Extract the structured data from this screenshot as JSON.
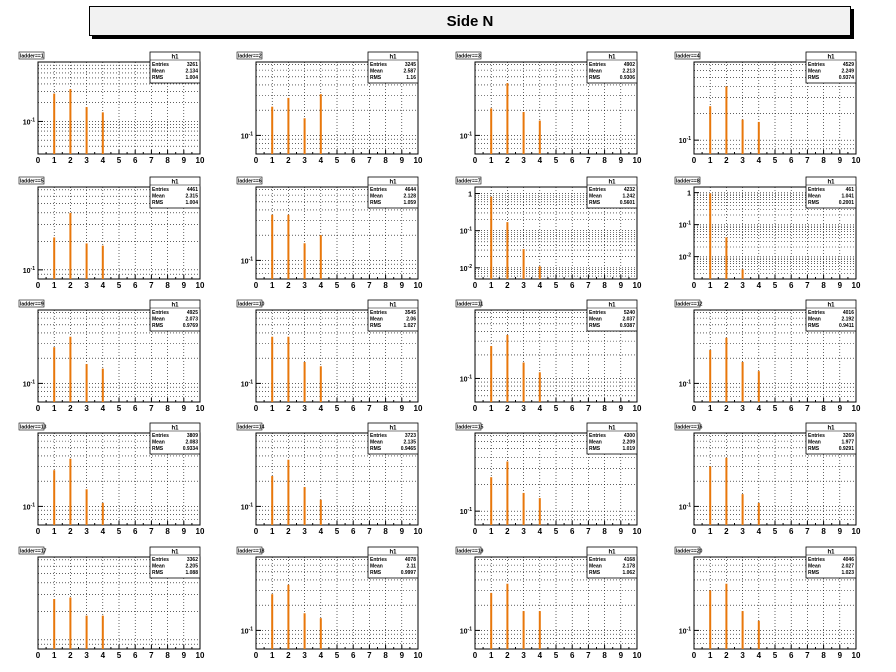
{
  "page_title": "Side N",
  "chart_data": [
    {
      "type": "bar",
      "title": "ladder==1",
      "stats": {
        "name": "h1",
        "entries": "3261",
        "mean": "2.134",
        "rms": "1.004"
      },
      "x_ticks": [
        "0",
        "1",
        "2",
        "3",
        "4",
        "5",
        "6",
        "7",
        "8",
        "9",
        "10"
      ],
      "xlim": [
        0,
        10
      ],
      "y_log": true,
      "y_ticks": [
        "10^-1"
      ],
      "ylim": [
        0.03,
        0.9
      ],
      "bars": [
        {
          "x": 1,
          "y": 0.28
        },
        {
          "x": 2,
          "y": 0.33
        },
        {
          "x": 3,
          "y": 0.17
        },
        {
          "x": 4,
          "y": 0.14
        }
      ]
    },
    {
      "type": "bar",
      "title": "ladder==2",
      "stats": {
        "name": "h1",
        "entries": "3245",
        "mean": "2.587",
        "rms": "1.16"
      },
      "x_ticks": [
        "0",
        "1",
        "2",
        "3",
        "4",
        "5",
        "6",
        "7",
        "8",
        "9",
        "10"
      ],
      "xlim": [
        0,
        10
      ],
      "y_log": true,
      "y_ticks": [
        "10^-1"
      ],
      "ylim": [
        0.06,
        0.75
      ],
      "bars": [
        {
          "x": 1,
          "y": 0.22
        },
        {
          "x": 2,
          "y": 0.28
        },
        {
          "x": 3,
          "y": 0.16
        },
        {
          "x": 4,
          "y": 0.31
        }
      ]
    },
    {
      "type": "bar",
      "title": "ladder==3",
      "stats": {
        "name": "h1",
        "entries": "4902",
        "mean": "2.213",
        "rms": "0.9306"
      },
      "x_ticks": [
        "0",
        "1",
        "2",
        "3",
        "4",
        "5",
        "6",
        "7",
        "8",
        "9",
        "10"
      ],
      "xlim": [
        0,
        10
      ],
      "y_log": true,
      "y_ticks": [
        "10^-1"
      ],
      "ylim": [
        0.06,
        0.75
      ],
      "bars": [
        {
          "x": 1,
          "y": 0.21
        },
        {
          "x": 2,
          "y": 0.42
        },
        {
          "x": 3,
          "y": 0.19
        },
        {
          "x": 4,
          "y": 0.15
        }
      ]
    },
    {
      "type": "bar",
      "title": "ladder==4",
      "stats": {
        "name": "h1",
        "entries": "4529",
        "mean": "2.249",
        "rms": "0.9374"
      },
      "x_ticks": [
        "0",
        "1",
        "2",
        "3",
        "4",
        "5",
        "6",
        "7",
        "8",
        "9",
        "10"
      ],
      "xlim": [
        0,
        10
      ],
      "y_log": true,
      "y_ticks": [
        "10^-1"
      ],
      "ylim": [
        0.07,
        0.75
      ],
      "bars": [
        {
          "x": 1,
          "y": 0.24
        },
        {
          "x": 2,
          "y": 0.4
        },
        {
          "x": 3,
          "y": 0.17
        },
        {
          "x": 4,
          "y": 0.16
        }
      ]
    },
    {
      "type": "bar",
      "title": "ladder==5",
      "stats": {
        "name": "h1",
        "entries": "4461",
        "mean": "2.315",
        "rms": "1.004"
      },
      "x_ticks": [
        "0",
        "1",
        "2",
        "3",
        "4",
        "5",
        "6",
        "7",
        "8",
        "9",
        "10"
      ],
      "xlim": [
        0,
        10
      ],
      "y_log": true,
      "y_ticks": [
        "10^-1"
      ],
      "ylim": [
        0.08,
        0.75
      ],
      "bars": [
        {
          "x": 1,
          "y": 0.22
        },
        {
          "x": 2,
          "y": 0.4
        },
        {
          "x": 3,
          "y": 0.19
        },
        {
          "x": 4,
          "y": 0.18
        }
      ]
    },
    {
      "type": "bar",
      "title": "ladder==6",
      "stats": {
        "name": "h1",
        "entries": "4644",
        "mean": "2.128",
        "rms": "1.059"
      },
      "x_ticks": [
        "0",
        "1",
        "2",
        "3",
        "4",
        "5",
        "6",
        "7",
        "8",
        "9",
        "10"
      ],
      "xlim": [
        0,
        10
      ],
      "y_log": true,
      "y_ticks": [
        "10^-1"
      ],
      "ylim": [
        0.06,
        0.75
      ],
      "bars": [
        {
          "x": 1,
          "y": 0.35
        },
        {
          "x": 2,
          "y": 0.35
        },
        {
          "x": 3,
          "y": 0.16
        },
        {
          "x": 4,
          "y": 0.2
        }
      ]
    },
    {
      "type": "bar",
      "title": "ladder==7",
      "stats": {
        "name": "h1",
        "entries": "4232",
        "mean": "1.242",
        "rms": "0.5601"
      },
      "x_ticks": [
        "0",
        "1",
        "2",
        "3",
        "4",
        "5",
        "6",
        "7",
        "8",
        "9",
        "10"
      ],
      "xlim": [
        0,
        10
      ],
      "y_log": true,
      "y_ticks": [
        "1",
        "10^-1",
        "10^-2"
      ],
      "ylim": [
        0.005,
        1.5
      ],
      "bars": [
        {
          "x": 1,
          "y": 0.82
        },
        {
          "x": 2,
          "y": 0.17
        },
        {
          "x": 3,
          "y": 0.032
        },
        {
          "x": 4,
          "y": 0.011
        }
      ]
    },
    {
      "type": "bar",
      "title": "ladder==8",
      "stats": {
        "name": "h1",
        "entries": "461",
        "mean": "1.041",
        "rms": "0.2001"
      },
      "x_ticks": [
        "0",
        "1",
        "2",
        "3",
        "4",
        "5",
        "6",
        "7",
        "8",
        "9",
        "10"
      ],
      "xlim": [
        0,
        10
      ],
      "y_log": true,
      "y_ticks": [
        "1",
        "10^-1",
        "10^-2"
      ],
      "ylim": [
        0.002,
        1.5
      ],
      "bars": [
        {
          "x": 1,
          "y": 0.95
        },
        {
          "x": 2,
          "y": 0.04
        },
        {
          "x": 3,
          "y": 0.004
        }
      ]
    },
    {
      "type": "bar",
      "title": "ladder==9",
      "stats": {
        "name": "h1",
        "entries": "4925",
        "mean": "2.073",
        "rms": "0.9769"
      },
      "x_ticks": [
        "0",
        "1",
        "2",
        "3",
        "4",
        "5",
        "6",
        "7",
        "8",
        "9",
        "10"
      ],
      "xlim": [
        0,
        10
      ],
      "y_log": true,
      "y_ticks": [
        "10^-1"
      ],
      "ylim": [
        0.06,
        0.75
      ],
      "bars": [
        {
          "x": 1,
          "y": 0.27
        },
        {
          "x": 2,
          "y": 0.36
        },
        {
          "x": 3,
          "y": 0.17
        },
        {
          "x": 4,
          "y": 0.15
        }
      ]
    },
    {
      "type": "bar",
      "title": "ladder==10",
      "stats": {
        "name": "h1",
        "entries": "3545",
        "mean": "2.06",
        "rms": "1.027"
      },
      "x_ticks": [
        "0",
        "1",
        "2",
        "3",
        "4",
        "5",
        "6",
        "7",
        "8",
        "9",
        "10"
      ],
      "xlim": [
        0,
        10
      ],
      "y_log": true,
      "y_ticks": [
        "10^-1"
      ],
      "ylim": [
        0.06,
        0.75
      ],
      "bars": [
        {
          "x": 1,
          "y": 0.36
        },
        {
          "x": 2,
          "y": 0.36
        },
        {
          "x": 3,
          "y": 0.18
        },
        {
          "x": 4,
          "y": 0.16
        }
      ]
    },
    {
      "type": "bar",
      "title": "ladder==11",
      "stats": {
        "name": "h1",
        "entries": "5240",
        "mean": "2.037",
        "rms": "0.9387"
      },
      "x_ticks": [
        "0",
        "1",
        "2",
        "3",
        "4",
        "5",
        "6",
        "7",
        "8",
        "9",
        "10"
      ],
      "xlim": [
        0,
        10
      ],
      "y_log": true,
      "y_ticks": [
        "10^-1"
      ],
      "ylim": [
        0.05,
        0.75
      ],
      "bars": [
        {
          "x": 1,
          "y": 0.26
        },
        {
          "x": 2,
          "y": 0.36
        },
        {
          "x": 3,
          "y": 0.16
        },
        {
          "x": 4,
          "y": 0.12
        }
      ]
    },
    {
      "type": "bar",
      "title": "ladder==12",
      "stats": {
        "name": "h1",
        "entries": "4016",
        "mean": "2.192",
        "rms": "0.9411"
      },
      "x_ticks": [
        "0",
        "1",
        "2",
        "3",
        "4",
        "5",
        "6",
        "7",
        "8",
        "9",
        "10"
      ],
      "xlim": [
        0,
        10
      ],
      "y_log": true,
      "y_ticks": [
        "10^-1"
      ],
      "ylim": [
        0.06,
        0.75
      ],
      "bars": [
        {
          "x": 1,
          "y": 0.25
        },
        {
          "x": 2,
          "y": 0.35
        },
        {
          "x": 3,
          "y": 0.18
        },
        {
          "x": 4,
          "y": 0.14
        }
      ]
    },
    {
      "type": "bar",
      "title": "ladder==13",
      "stats": {
        "name": "h1",
        "entries": "3809",
        "mean": "2.083",
        "rms": "0.9334"
      },
      "x_ticks": [
        "0",
        "1",
        "2",
        "3",
        "4",
        "5",
        "6",
        "7",
        "8",
        "9",
        "10"
      ],
      "xlim": [
        0,
        10
      ],
      "y_log": true,
      "y_ticks": [
        "10^-1"
      ],
      "ylim": [
        0.06,
        0.75
      ],
      "bars": [
        {
          "x": 1,
          "y": 0.27
        },
        {
          "x": 2,
          "y": 0.37
        },
        {
          "x": 3,
          "y": 0.16
        },
        {
          "x": 4,
          "y": 0.11
        }
      ]
    },
    {
      "type": "bar",
      "title": "ladder==14",
      "stats": {
        "name": "h1",
        "entries": "3723",
        "mean": "2.135",
        "rms": "0.9465"
      },
      "x_ticks": [
        "0",
        "1",
        "2",
        "3",
        "4",
        "5",
        "6",
        "7",
        "8",
        "9",
        "10"
      ],
      "xlim": [
        0,
        10
      ],
      "y_log": true,
      "y_ticks": [
        "10^-1"
      ],
      "ylim": [
        0.06,
        0.75
      ],
      "bars": [
        {
          "x": 1,
          "y": 0.23
        },
        {
          "x": 2,
          "y": 0.36
        },
        {
          "x": 3,
          "y": 0.17
        },
        {
          "x": 4,
          "y": 0.12
        }
      ]
    },
    {
      "type": "bar",
      "title": "ladder==15",
      "stats": {
        "name": "h1",
        "entries": "4300",
        "mean": "2.209",
        "rms": "1.019"
      },
      "x_ticks": [
        "0",
        "1",
        "2",
        "3",
        "4",
        "5",
        "6",
        "7",
        "8",
        "9",
        "10"
      ],
      "xlim": [
        0,
        10
      ],
      "y_log": true,
      "y_ticks": [
        "10^-1"
      ],
      "ylim": [
        0.07,
        0.75
      ],
      "bars": [
        {
          "x": 1,
          "y": 0.24
        },
        {
          "x": 2,
          "y": 0.36
        },
        {
          "x": 3,
          "y": 0.16
        },
        {
          "x": 4,
          "y": 0.14
        }
      ]
    },
    {
      "type": "bar",
      "title": "ladder==16",
      "stats": {
        "name": "h1",
        "entries": "3269",
        "mean": "1.977",
        "rms": "0.9291"
      },
      "x_ticks": [
        "0",
        "1",
        "2",
        "3",
        "4",
        "5",
        "6",
        "7",
        "8",
        "9",
        "10"
      ],
      "xlim": [
        0,
        10
      ],
      "y_log": true,
      "y_ticks": [
        "10^-1"
      ],
      "ylim": [
        0.06,
        0.75
      ],
      "bars": [
        {
          "x": 1,
          "y": 0.3
        },
        {
          "x": 2,
          "y": 0.38
        },
        {
          "x": 3,
          "y": 0.14
        },
        {
          "x": 4,
          "y": 0.11
        }
      ]
    },
    {
      "type": "bar",
      "title": "ladder==17",
      "stats": {
        "name": "h1",
        "entries": "3362",
        "mean": "2.205",
        "rms": "1.088"
      },
      "x_ticks": [
        "0",
        "1",
        "2",
        "3",
        "4",
        "5",
        "6",
        "7",
        "8",
        "9",
        "10"
      ],
      "xlim": [
        0,
        10
      ],
      "y_log": true,
      "y_ticks": [],
      "ylim": [
        0.08,
        0.75
      ],
      "bars": [
        {
          "x": 1,
          "y": 0.27
        },
        {
          "x": 2,
          "y": 0.28
        },
        {
          "x": 3,
          "y": 0.18
        },
        {
          "x": 4,
          "y": 0.18
        }
      ]
    },
    {
      "type": "bar",
      "title": "ladder==18",
      "stats": {
        "name": "h1",
        "entries": "4078",
        "mean": "2.11",
        "rms": "0.9997"
      },
      "x_ticks": [
        "0",
        "1",
        "2",
        "3",
        "4",
        "5",
        "6",
        "7",
        "8",
        "9",
        "10"
      ],
      "xlim": [
        0,
        10
      ],
      "y_log": true,
      "y_ticks": [
        "10^-1"
      ],
      "ylim": [
        0.06,
        0.75
      ],
      "bars": [
        {
          "x": 1,
          "y": 0.27
        },
        {
          "x": 2,
          "y": 0.35
        },
        {
          "x": 3,
          "y": 0.16
        },
        {
          "x": 4,
          "y": 0.14
        }
      ]
    },
    {
      "type": "bar",
      "title": "ladder==19",
      "stats": {
        "name": "h1",
        "entries": "4168",
        "mean": "2.178",
        "rms": "1.062"
      },
      "x_ticks": [
        "0",
        "1",
        "2",
        "3",
        "4",
        "5",
        "6",
        "7",
        "8",
        "9",
        "10"
      ],
      "xlim": [
        0,
        10
      ],
      "y_log": true,
      "y_ticks": [
        "10^-1"
      ],
      "ylim": [
        0.06,
        0.75
      ],
      "bars": [
        {
          "x": 1,
          "y": 0.28
        },
        {
          "x": 2,
          "y": 0.36
        },
        {
          "x": 3,
          "y": 0.17
        },
        {
          "x": 4,
          "y": 0.17
        }
      ]
    },
    {
      "type": "bar",
      "title": "ladder==20",
      "stats": {
        "name": "h1",
        "entries": "4046",
        "mean": "2.027",
        "rms": "1.023"
      },
      "x_ticks": [
        "0",
        "1",
        "2",
        "3",
        "4",
        "5",
        "6",
        "7",
        "8",
        "9",
        "10"
      ],
      "xlim": [
        0,
        10
      ],
      "y_log": true,
      "y_ticks": [
        "10^-1"
      ],
      "ylim": [
        0.06,
        0.75
      ],
      "bars": [
        {
          "x": 1,
          "y": 0.3
        },
        {
          "x": 2,
          "y": 0.36
        },
        {
          "x": 3,
          "y": 0.17
        },
        {
          "x": 4,
          "y": 0.13
        }
      ]
    }
  ],
  "colors": {
    "bar": "#e8770b",
    "grid": "#000000",
    "frame": "#000000",
    "label_box": "#ffffff"
  }
}
